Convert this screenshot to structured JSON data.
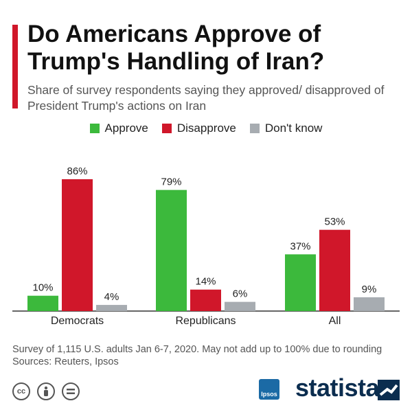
{
  "title": "Do Americans Approve of Trump's Handling of Iran?",
  "subtitle": "Share of survey respondents saying they approved/ disapproved of President Trump's actions on Iran",
  "legend": [
    {
      "label": "Approve",
      "color": "#3cb93c"
    },
    {
      "label": "Disapprove",
      "color": "#d0172a"
    },
    {
      "label": "Don't know",
      "color": "#a7acb1"
    }
  ],
  "chart_data": {
    "type": "bar",
    "categories": [
      "Democrats",
      "Republicans",
      "All"
    ],
    "series": [
      {
        "name": "Approve",
        "values": [
          10,
          79,
          37
        ],
        "color": "#3cb93c"
      },
      {
        "name": "Disapprove",
        "values": [
          86,
          14,
          53
        ],
        "color": "#d0172a"
      },
      {
        "name": "Don't know",
        "values": [
          4,
          6,
          9
        ],
        "color": "#a7acb1"
      }
    ],
    "value_suffix": "%",
    "ylim": [
      0,
      100
    ],
    "grid": false
  },
  "footer": {
    "note": "Survey of 1,115 U.S. adults Jan 6-7, 2020. May not add up to 100% due to rounding",
    "sources": "Sources: Reuters, Ipsos",
    "ipsos_label": "Ipsos",
    "brand": "statista"
  },
  "icons": [
    "cc-icon",
    "attribution-icon",
    "no-derivatives-icon"
  ]
}
